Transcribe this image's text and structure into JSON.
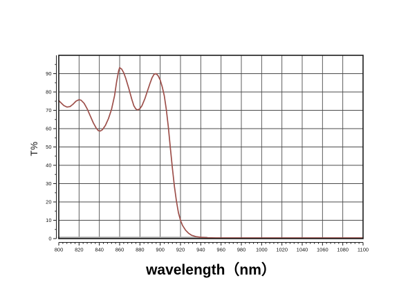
{
  "figure": {
    "background": "#ffffff"
  },
  "chart_data": {
    "type": "line",
    "title": "",
    "xlabel": "wavelength（nm）",
    "ylabel": "T%",
    "xlim": [
      800,
      1100
    ],
    "ylim": [
      0,
      100
    ],
    "x_major_ticks": [
      800,
      820,
      840,
      860,
      880,
      900,
      920,
      940,
      960,
      980,
      1000,
      1020,
      1040,
      1060,
      1080,
      1100
    ],
    "x_minor_step": 4,
    "y_major_ticks": [
      0,
      10,
      20,
      30,
      40,
      50,
      60,
      70,
      80,
      90
    ],
    "y_minor_step": 5,
    "grid": {
      "show": true,
      "which": "major",
      "color": "#4a4a4a"
    },
    "legend": "none",
    "style": {
      "frame_color": "#1a1a1a",
      "axis_color": "#1a1a1a",
      "tick_label_color": "#111111",
      "tick_label_size": 7.5
    },
    "series": [
      {
        "name": "zero-baseline",
        "color": "#a9a9a9",
        "width": 3,
        "points": [
          [
            800,
            0.45
          ],
          [
            946,
            0.45
          ]
        ]
      },
      {
        "name": "transmission",
        "color": "#9d4f4a",
        "width": 1.7,
        "points": [
          [
            800,
            75.3
          ],
          [
            802,
            74.2
          ],
          [
            805,
            72.6
          ],
          [
            808,
            71.8
          ],
          [
            811,
            72.0
          ],
          [
            814,
            73.3
          ],
          [
            817,
            75.0
          ],
          [
            820,
            75.8
          ],
          [
            822,
            75.5
          ],
          [
            825,
            73.8
          ],
          [
            828,
            70.8
          ],
          [
            831,
            67.0
          ],
          [
            834,
            63.2
          ],
          [
            837,
            60.2
          ],
          [
            839,
            58.9
          ],
          [
            841,
            58.7
          ],
          [
            843,
            59.4
          ],
          [
            846,
            61.8
          ],
          [
            849,
            65.5
          ],
          [
            852,
            70.5
          ],
          [
            855,
            78.0
          ],
          [
            857,
            85.5
          ],
          [
            859,
            91.5
          ],
          [
            860,
            93.3
          ],
          [
            862,
            92.5
          ],
          [
            864,
            90.5
          ],
          [
            866,
            87.5
          ],
          [
            869,
            82.0
          ],
          [
            872,
            76.0
          ],
          [
            874,
            72.5
          ],
          [
            876,
            70.7
          ],
          [
            878,
            70.2
          ],
          [
            880,
            70.9
          ],
          [
            882,
            72.5
          ],
          [
            885,
            76.5
          ],
          [
            888,
            81.5
          ],
          [
            890,
            84.8
          ],
          [
            892,
            87.8
          ],
          [
            894,
            89.7
          ],
          [
            896,
            90.0
          ],
          [
            898,
            88.8
          ],
          [
            900,
            86.5
          ],
          [
            902,
            82.8
          ],
          [
            904,
            78.0
          ],
          [
            906,
            70.5
          ],
          [
            908,
            61.0
          ],
          [
            910,
            49.5
          ],
          [
            912,
            38.5
          ],
          [
            914,
            28.5
          ],
          [
            916,
            20.5
          ],
          [
            918,
            14.0
          ],
          [
            920,
            10.0
          ],
          [
            922,
            7.2
          ],
          [
            925,
            4.6
          ],
          [
            928,
            2.9
          ],
          [
            931,
            1.8
          ],
          [
            935,
            1.1
          ],
          [
            940,
            0.7
          ],
          [
            946,
            0.5
          ],
          [
            955,
            0.4
          ],
          [
            1000,
            0.4
          ],
          [
            1050,
            0.4
          ],
          [
            1100,
            0.4
          ]
        ]
      }
    ]
  }
}
